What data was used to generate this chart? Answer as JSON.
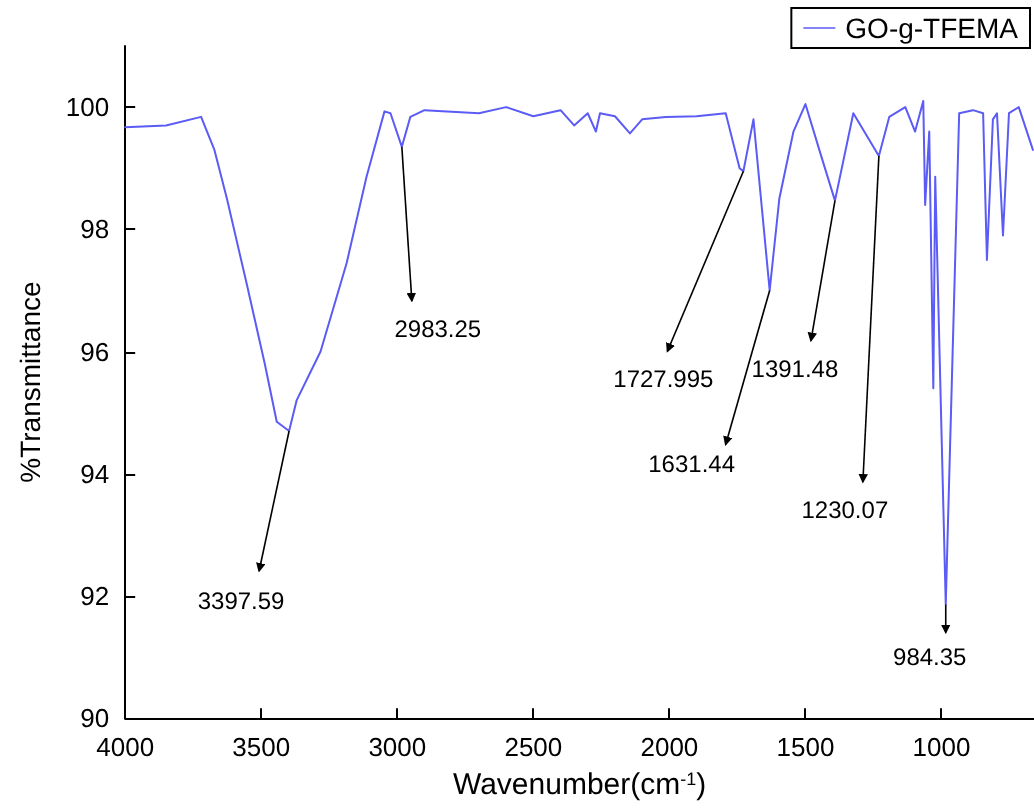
{
  "chart_data": {
    "type": "line",
    "xlabel": "Wavenumber(cm$^{-1}$)",
    "ylabel": "%Transmittance",
    "legend": "top right",
    "grid": false,
    "marker": "none",
    "line_style": "solid",
    "xlim": [
      4000,
      660
    ],
    "xticks": [
      4000,
      3500,
      3000,
      2500,
      2000,
      1500,
      1000
    ],
    "ylim": [
      90,
      101
    ],
    "yticks": [
      90,
      92,
      94,
      96,
      98,
      100
    ],
    "series": [
      {
        "name": "GO-g-TFEMA",
        "color": "#5b5bf5",
        "x": [
          4000,
          3850,
          3721,
          3672,
          3626,
          3553,
          3487,
          3443,
          3397.59,
          3370,
          3282,
          3186,
          3113,
          3047,
          3025,
          2983.25,
          2952,
          2900,
          2700,
          2600,
          2500,
          2400,
          2350,
          2300,
          2270,
          2255,
          2200,
          2145,
          2100,
          2013,
          1900,
          1793,
          1742,
          1727.995,
          1691,
          1631.44,
          1596,
          1544,
          1500,
          1449,
          1391.48,
          1324,
          1230.07,
          1192,
          1133,
          1097,
          1067,
          1060,
          1045,
          1030,
          1023,
          984.35,
          935,
          884,
          847,
          833,
          811,
          796,
          774,
          752,
          716,
          664
        ],
        "values": [
          99.67,
          99.7,
          99.84,
          99.3,
          98.5,
          97.1,
          95.8,
          94.85,
          94.7,
          95.2,
          96.0,
          97.45,
          98.86,
          99.93,
          99.9,
          99.35,
          99.84,
          99.95,
          99.9,
          100.0,
          99.85,
          99.95,
          99.7,
          99.9,
          99.6,
          99.9,
          99.85,
          99.57,
          99.8,
          99.84,
          99.85,
          99.9,
          99.0,
          98.95,
          99.8,
          97.0,
          98.5,
          99.6,
          100.05,
          99.3,
          98.47,
          99.9,
          99.2,
          99.84,
          100.0,
          99.6,
          100.1,
          98.4,
          99.6,
          95.4,
          98.86,
          91.86,
          99.9,
          99.95,
          99.9,
          97.5,
          99.8,
          99.9,
          97.9,
          99.9,
          100.0,
          99.3
        ]
      }
    ],
    "annotations": [
      {
        "text": "3397.59",
        "x": 3397.59,
        "y": 94.7
      },
      {
        "text": "2983.25",
        "x": 2983.25,
        "y": 99.35
      },
      {
        "text": "1727.995",
        "x": 1727.995,
        "y": 98.95
      },
      {
        "text": "1631.44",
        "x": 1631.44,
        "y": 97.0
      },
      {
        "text": "1391.48",
        "x": 1391.48,
        "y": 98.47
      },
      {
        "text": "1230.07",
        "x": 1230.07,
        "y": 99.2
      },
      {
        "text": "984.35",
        "x": 984.35,
        "y": 91.86
      }
    ]
  }
}
